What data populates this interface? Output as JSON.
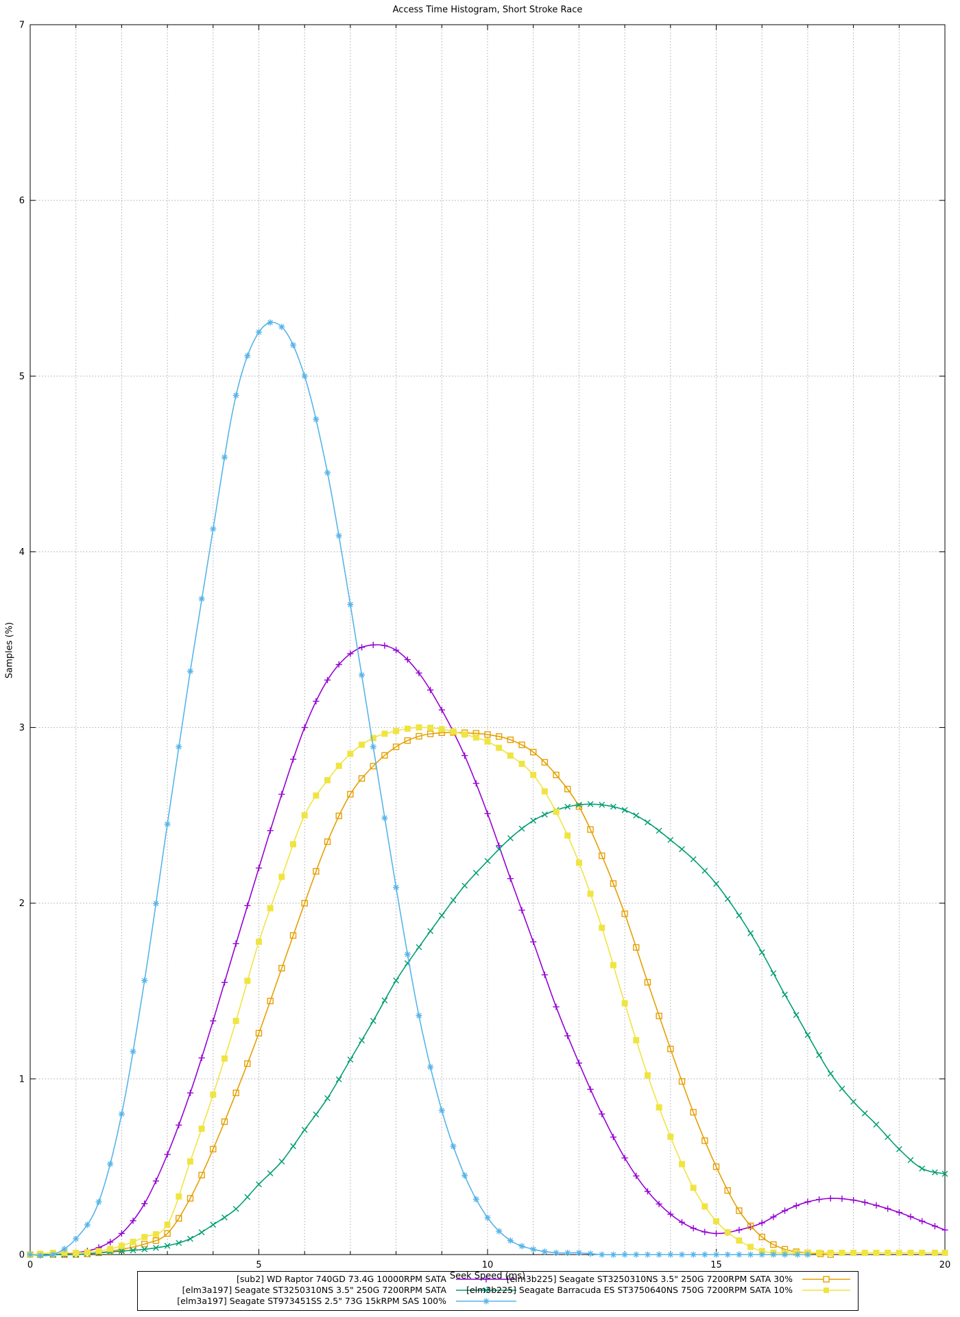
{
  "page": {
    "title": "Access Time Histogram, Short Stroke Race"
  },
  "chart_data": {
    "type": "line",
    "title": "Access Time Histogram, Short Stroke Race",
    "xlabel": "Seek Speed (ms)",
    "ylabel": "Samples (%)",
    "xlim": [
      0,
      20
    ],
    "ylim": [
      0,
      7
    ],
    "x_tick_labels": [
      0,
      5,
      10,
      15,
      20
    ],
    "y_tick_labels": [
      0,
      1,
      2,
      3,
      4,
      5,
      6,
      7
    ],
    "x_grid_step": 1,
    "y_grid_step": 1,
    "grid": "dotted",
    "legend_position": "bottom-center",
    "x": [
      0,
      0.5,
      1,
      1.5,
      2,
      2.5,
      3,
      3.5,
      4,
      4.5,
      5,
      5.5,
      6,
      6.5,
      7,
      7.5,
      8,
      8.5,
      9,
      9.5,
      10,
      10.5,
      11,
      11.5,
      12,
      12.5,
      13,
      13.5,
      14,
      14.5,
      15,
      15.5,
      16,
      16.5,
      17,
      17.5,
      18,
      18.5,
      19,
      19.5,
      20
    ],
    "series": [
      {
        "name": "[sub2] WD Raptor 740GD 73.4G 10000RPM SATA",
        "color": "#9400d3",
        "marker": "plus",
        "values": [
          0,
          0,
          0.01,
          0.04,
          0.12,
          0.29,
          0.57,
          0.92,
          1.33,
          1.77,
          2.2,
          2.62,
          3.0,
          3.27,
          3.42,
          3.47,
          3.44,
          3.31,
          3.1,
          2.84,
          2.51,
          2.14,
          1.78,
          1.41,
          1.09,
          0.8,
          0.55,
          0.36,
          0.23,
          0.15,
          0.12,
          0.14,
          0.18,
          0.25,
          0.3,
          0.32,
          0.31,
          0.28,
          0.24,
          0.19,
          0.14
        ]
      },
      {
        "name": "[elm3b225] Seagate ST3250310NS 3.5\" 250G 7200RPM SATA 30%",
        "color": "#e69f00",
        "marker": "square-open",
        "values": [
          0,
          0,
          0,
          0.01,
          0.03,
          0.06,
          0.12,
          0.32,
          0.6,
          0.92,
          1.26,
          1.63,
          2.0,
          2.35,
          2.62,
          2.78,
          2.89,
          2.95,
          2.97,
          2.97,
          2.96,
          2.93,
          2.86,
          2.73,
          2.55,
          2.27,
          1.94,
          1.55,
          1.17,
          0.81,
          0.5,
          0.25,
          0.1,
          0.03,
          0.01,
          0,
          null,
          null,
          null,
          null,
          null
        ]
      },
      {
        "name": "[elm3a197] Seagate ST3250310NS 3.5\" 250G 7200RPM SATA",
        "color": "#009e73",
        "marker": "cross",
        "values": [
          0,
          0,
          0,
          0.01,
          0.02,
          0.03,
          0.05,
          0.09,
          0.17,
          0.26,
          0.4,
          0.53,
          0.71,
          0.89,
          1.11,
          1.33,
          1.56,
          1.75,
          1.93,
          2.1,
          2.24,
          2.37,
          2.47,
          2.53,
          2.56,
          2.56,
          2.53,
          2.46,
          2.36,
          2.25,
          2.11,
          1.93,
          1.72,
          1.48,
          1.25,
          1.03,
          0.87,
          0.74,
          0.6,
          0.49,
          0.46
        ]
      },
      {
        "name": "[elm3b225] Seagate Barracuda ES ST3750640NS 750G 7200RPM SATA 10%",
        "color": "#f0e442",
        "marker": "square-fill",
        "values": [
          0,
          0.01,
          0.01,
          0.02,
          0.05,
          0.1,
          0.17,
          0.53,
          0.91,
          1.33,
          1.78,
          2.15,
          2.5,
          2.7,
          2.85,
          2.94,
          2.98,
          3.0,
          2.99,
          2.96,
          2.92,
          2.84,
          2.73,
          2.52,
          2.23,
          1.86,
          1.43,
          1.02,
          0.67,
          0.38,
          0.19,
          0.08,
          0.02,
          0.01,
          0.01,
          0.01,
          0.01,
          0.01,
          0.01,
          0.01,
          0.01
        ]
      },
      {
        "name": "[elm3a197] Seagate ST973451SS 2.5\" 73G 15kRPM SAS 100%",
        "color": "#56b4e9",
        "marker": "asterisk",
        "values": [
          0,
          0,
          0.09,
          0.3,
          0.8,
          1.56,
          2.45,
          3.32,
          4.13,
          4.89,
          5.25,
          5.28,
          5.0,
          4.45,
          3.7,
          2.89,
          2.09,
          1.36,
          0.82,
          0.45,
          0.21,
          0.08,
          0.03,
          0.01,
          0.01,
          0,
          0,
          0,
          0,
          0,
          0,
          0,
          0,
          0,
          0,
          null,
          null,
          null,
          null,
          null,
          null
        ]
      }
    ],
    "legend_rows": [
      [
        0,
        1
      ],
      [
        2,
        3
      ],
      [
        4,
        -1
      ]
    ]
  }
}
